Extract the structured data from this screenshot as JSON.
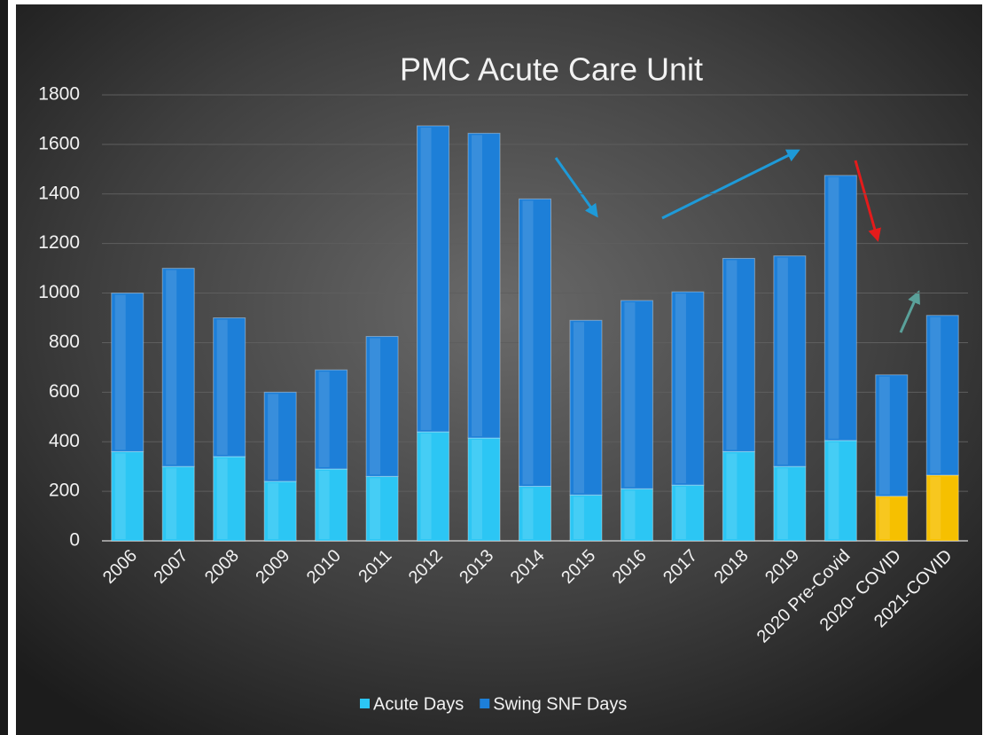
{
  "chart_data": {
    "type": "stacked_bar",
    "title": "PMC Acute Care Unit",
    "categories": [
      "2006",
      "2007",
      "2008",
      "2009",
      "2010",
      "2011",
      "2012",
      "2013",
      "2014",
      "2015",
      "2016",
      "2017",
      "2018",
      "2019",
      "2020 Pre-Covid",
      "2020- COVID",
      "2021-COVID"
    ],
    "series": [
      {
        "name": "Acute Days",
        "color": "#2cc6f4",
        "point_colors": [
          "#2cc6f4",
          "#2cc6f4",
          "#2cc6f4",
          "#2cc6f4",
          "#2cc6f4",
          "#2cc6f4",
          "#2cc6f4",
          "#2cc6f4",
          "#2cc6f4",
          "#2cc6f4",
          "#2cc6f4",
          "#2cc6f4",
          "#2cc6f4",
          "#2cc6f4",
          "#2cc6f4",
          "#f6c000",
          "#f6c000"
        ],
        "values": [
          360,
          300,
          340,
          240,
          290,
          260,
          440,
          415,
          220,
          185,
          210,
          225,
          360,
          300,
          405,
          180,
          265
        ]
      },
      {
        "name": "Swing SNF Days",
        "color": "#1d7fd8",
        "values": [
          640,
          800,
          560,
          360,
          400,
          565,
          1235,
          1230,
          1160,
          705,
          760,
          780,
          780,
          850,
          1070,
          490,
          645
        ]
      }
    ],
    "ylim": [
      0,
      1800
    ],
    "yticks": [
      0,
      200,
      400,
      600,
      800,
      1000,
      1200,
      1400,
      1600,
      1800
    ],
    "grid": true,
    "legend": "bottom"
  }
}
